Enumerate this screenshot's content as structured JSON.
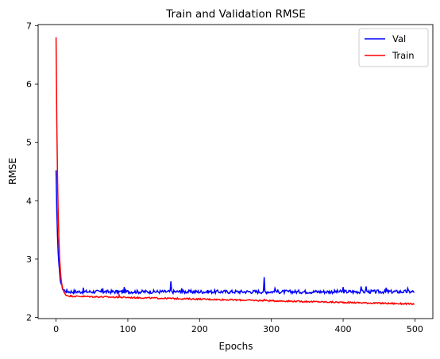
{
  "chart_data": {
    "type": "line",
    "title": "Train and Validation RMSE",
    "xlabel": "Epochs",
    "ylabel": "RMSE",
    "xlim": [
      -25,
      525
    ],
    "ylim": [
      1.98,
      7.02
    ],
    "xticks": [
      0,
      100,
      200,
      300,
      400,
      500
    ],
    "yticks": [
      2,
      3,
      4,
      5,
      6,
      7
    ],
    "grid": false,
    "legend_position": "top-right",
    "series": [
      {
        "name": "Val",
        "color": "#0000ff",
        "start": 4.52,
        "plateau": 2.44,
        "end": 2.44,
        "noise": 0.03,
        "spikes": [
          [
            38,
            2.51
          ],
          [
            65,
            2.5
          ],
          [
            95,
            2.52
          ],
          [
            160,
            2.62
          ],
          [
            175,
            2.5
          ],
          [
            290,
            2.69
          ],
          [
            305,
            2.5
          ],
          [
            400,
            2.52
          ],
          [
            425,
            2.53
          ],
          [
            432,
            2.53
          ],
          [
            460,
            2.51
          ],
          [
            490,
            2.5
          ]
        ]
      },
      {
        "name": "Train",
        "color": "#ff0000",
        "start": 6.8,
        "plateau": 2.37,
        "end": 2.23,
        "noise": 0.012,
        "spikes": [
          [
            88,
            2.38
          ],
          [
            290,
            2.31
          ]
        ]
      }
    ]
  }
}
